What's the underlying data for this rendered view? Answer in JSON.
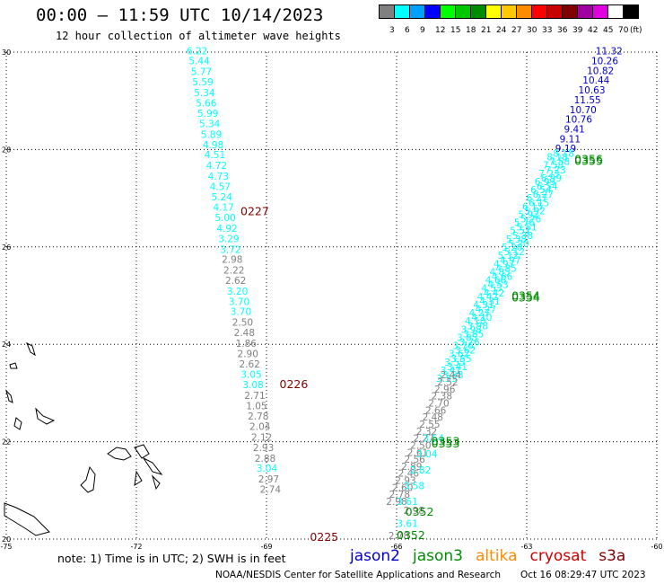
{
  "header": {
    "title": "00:00 – 11:59 UTC 10/14/2023",
    "subtitle": "12 hour collection of altimeter wave heights"
  },
  "colorbar": {
    "colors": [
      "#808080",
      "#00ffff",
      "#00a0ff",
      "#0000ff",
      "#00ff00",
      "#00c800",
      "#008c00",
      "#ffff00",
      "#ffc800",
      "#ff8c00",
      "#ff0000",
      "#c80000",
      "#800000",
      "#a000a0",
      "#e000e0",
      "#ffffff",
      "#000000"
    ],
    "labels": [
      "3",
      "6",
      "9",
      "12",
      "15",
      "18",
      "21",
      "24",
      "27",
      "30",
      "33",
      "36",
      "39",
      "42",
      "45",
      "70",
      "(ft)"
    ]
  },
  "axes": {
    "x_ticks": [
      "-75",
      "-72",
      "-69",
      "-66",
      "-63",
      "-60"
    ],
    "y_ticks": [
      "30",
      "28",
      "26",
      "24",
      "22",
      "20"
    ],
    "lon_range": [
      -75,
      -60
    ],
    "lat_range": [
      20,
      30
    ]
  },
  "tracks": {
    "jason3_west": {
      "color_key": "cyan_and_gray",
      "points": [
        {
          "lat": 29.95,
          "lon": -70.6,
          "v": "6.22",
          "c": "#00ffff"
        },
        {
          "lat": 29.75,
          "lon": -70.55,
          "v": "5.44",
          "c": "#00ffff"
        },
        {
          "lat": 29.53,
          "lon": -70.5,
          "v": "5.77",
          "c": "#00ffff"
        },
        {
          "lat": 29.32,
          "lon": -70.47,
          "v": "5.59",
          "c": "#00ffff"
        },
        {
          "lat": 29.1,
          "lon": -70.43,
          "v": "5.34",
          "c": "#00ffff"
        },
        {
          "lat": 28.88,
          "lon": -70.39,
          "v": "5.66",
          "c": "#00ffff"
        },
        {
          "lat": 28.67,
          "lon": -70.35,
          "v": "5.99",
          "c": "#00ffff"
        },
        {
          "lat": 28.46,
          "lon": -70.31,
          "v": "5.34",
          "c": "#00ffff"
        },
        {
          "lat": 28.24,
          "lon": -70.27,
          "v": "5.89",
          "c": "#00ffff"
        },
        {
          "lat": 28.03,
          "lon": -70.23,
          "v": "4.98",
          "c": "#00ffff"
        },
        {
          "lat": 27.82,
          "lon": -70.19,
          "v": "4.51",
          "c": "#00ffff"
        },
        {
          "lat": 27.6,
          "lon": -70.15,
          "v": "4.72",
          "c": "#00ffff"
        },
        {
          "lat": 27.38,
          "lon": -70.11,
          "v": "4.73",
          "c": "#00ffff"
        },
        {
          "lat": 27.17,
          "lon": -70.07,
          "v": "4.57",
          "c": "#00ffff"
        },
        {
          "lat": 26.96,
          "lon": -70.03,
          "v": "5.24",
          "c": "#00ffff"
        },
        {
          "lat": 26.74,
          "lon": -69.99,
          "v": "4.17",
          "c": "#00ffff"
        },
        {
          "lat": 26.53,
          "lon": -69.95,
          "v": "5.00",
          "c": "#00ffff"
        },
        {
          "lat": 26.31,
          "lon": -69.91,
          "v": "4.92",
          "c": "#00ffff"
        },
        {
          "lat": 26.1,
          "lon": -69.87,
          "v": "3.29",
          "c": "#00ffff"
        },
        {
          "lat": 25.88,
          "lon": -69.83,
          "v": "3.72",
          "c": "#00ffff"
        },
        {
          "lat": 25.67,
          "lon": -69.79,
          "v": "2.98",
          "c": "#808080"
        },
        {
          "lat": 25.45,
          "lon": -69.75,
          "v": "2.22",
          "c": "#808080"
        },
        {
          "lat": 25.24,
          "lon": -69.71,
          "v": "2.62",
          "c": "#808080"
        },
        {
          "lat": 25.02,
          "lon": -69.67,
          "v": "3.20",
          "c": "#00ffff"
        },
        {
          "lat": 24.81,
          "lon": -69.63,
          "v": "3.70",
          "c": "#00ffff"
        },
        {
          "lat": 24.6,
          "lon": -69.59,
          "v": "3.70",
          "c": "#00ffff"
        },
        {
          "lat": 24.38,
          "lon": -69.55,
          "v": "2.50",
          "c": "#808080"
        },
        {
          "lat": 24.17,
          "lon": -69.51,
          "v": "2.48",
          "c": "#808080"
        },
        {
          "lat": 23.95,
          "lon": -69.47,
          "v": "1.86",
          "c": "#808080"
        },
        {
          "lat": 23.74,
          "lon": -69.43,
          "v": "2.90",
          "c": "#808080"
        },
        {
          "lat": 23.52,
          "lon": -69.39,
          "v": "2.62",
          "c": "#808080"
        },
        {
          "lat": 23.31,
          "lon": -69.35,
          "v": "3.05",
          "c": "#00ffff"
        },
        {
          "lat": 23.1,
          "lon": -69.31,
          "v": "3.08",
          "c": "#00ffff"
        },
        {
          "lat": 22.88,
          "lon": -69.27,
          "v": "2.71",
          "c": "#808080"
        },
        {
          "lat": 22.67,
          "lon": -69.23,
          "v": "1.05",
          "c": "#808080"
        },
        {
          "lat": 22.45,
          "lon": -69.19,
          "v": "2.78",
          "c": "#808080"
        },
        {
          "lat": 22.24,
          "lon": -69.15,
          "v": "2.04",
          "c": "#808080"
        },
        {
          "lat": 22.02,
          "lon": -69.11,
          "v": "2.12",
          "c": "#808080"
        },
        {
          "lat": 21.81,
          "lon": -69.07,
          "v": "2.93",
          "c": "#808080"
        },
        {
          "lat": 21.59,
          "lon": -69.03,
          "v": "2.88",
          "c": "#808080"
        },
        {
          "lat": 21.38,
          "lon": -68.99,
          "v": "3.04",
          "c": "#00ffff"
        },
        {
          "lat": 21.16,
          "lon": -68.95,
          "v": "2.97",
          "c": "#808080"
        },
        {
          "lat": 20.95,
          "lon": -68.91,
          "v": "2.74",
          "c": "#808080"
        }
      ]
    },
    "east_blue": [
      {
        "lat": 29.95,
        "lon": -61.1,
        "v": "11.32"
      },
      {
        "lat": 29.75,
        "lon": -61.2,
        "v": "10.26"
      },
      {
        "lat": 29.55,
        "lon": -61.3,
        "v": "10.82"
      },
      {
        "lat": 29.35,
        "lon": -61.4,
        "v": "10.44"
      },
      {
        "lat": 29.15,
        "lon": -61.5,
        "v": "10.63"
      },
      {
        "lat": 28.95,
        "lon": -61.6,
        "v": "11.55"
      },
      {
        "lat": 28.75,
        "lon": -61.7,
        "v": "10.70"
      },
      {
        "lat": 28.55,
        "lon": -61.8,
        "v": "10.76"
      },
      {
        "lat": 28.35,
        "lon": -61.9,
        "v": "9.41"
      },
      {
        "lat": 28.15,
        "lon": -62.0,
        "v": "9.11"
      },
      {
        "lat": 27.95,
        "lon": -62.1,
        "v": "9.19"
      }
    ],
    "east_cyan_labels": [
      "8.18",
      "7.58",
      "7.23",
      "6.99",
      "6.54",
      "6.27",
      "6.15",
      "5.92",
      "5.76",
      "5.51",
      "5.38",
      "5.20",
      "5.12",
      "4.97",
      "4.85",
      "4.66",
      "4.53",
      "4.42",
      "4.31",
      "4.27",
      "4.10",
      "3.98",
      "3.85",
      "3.76",
      "3.62",
      "3.55",
      "3.41",
      "3.33"
    ],
    "east_gray_labels": [
      "2.44",
      "2.52",
      "2.96",
      "2.38",
      "2.70",
      "2.66",
      "2.48",
      "2.55",
      "2.32",
      "2.27",
      "2.50",
      "2.61",
      "2.56",
      "2.89",
      "2.46",
      "2.93",
      "2.60",
      "2.78",
      "2.98"
    ],
    "east_lower_cyan": [
      "3.54",
      "3.04",
      "2.82",
      "3.58",
      "3.61"
    ],
    "east_bottom": [
      {
        "lat": 20.52,
        "lon": -65.6,
        "v": "2.98",
        "c": "#808080"
      },
      {
        "lat": 20.25,
        "lon": -65.75,
        "v": "3.61",
        "c": "#00ffff"
      },
      {
        "lat": 20.0,
        "lon": -65.95,
        "v": "2.78",
        "c": "#808080"
      }
    ]
  },
  "time_labels": [
    {
      "lat": 26.65,
      "lon": -69.6,
      "text": "0227",
      "color": "#800000"
    },
    {
      "lat": 23.1,
      "lon": -68.7,
      "text": "0226",
      "color": "#800000"
    },
    {
      "lat": 19.96,
      "lon": -68.0,
      "text": "0225",
      "color": "#800000"
    },
    {
      "lat": 27.72,
      "lon": -61.9,
      "text": "0356",
      "color": "#008c00"
    },
    {
      "lat": 27.68,
      "lon": -61.9,
      "text": "0355",
      "color": "#008c00"
    },
    {
      "lat": 24.92,
      "lon": -63.35,
      "text": "0354",
      "color": "#008c00"
    },
    {
      "lat": 24.88,
      "lon": -63.35,
      "text": "0354",
      "color": "#008c00"
    },
    {
      "lat": 21.93,
      "lon": -65.2,
      "text": "0353",
      "color": "#008c00"
    },
    {
      "lat": 21.88,
      "lon": -65.2,
      "text": "0353",
      "color": "#008c00"
    },
    {
      "lat": 20.48,
      "lon": -65.8,
      "text": "0352",
      "color": "#008c00"
    },
    {
      "lat": 20.0,
      "lon": -66.0,
      "text": "0352",
      "color": "#008c00"
    }
  ],
  "note": "note:  1) Time is in UTC;  2) SWH is in feet",
  "legend": [
    {
      "name": "jason2",
      "color": "#0000cc"
    },
    {
      "name": "jason3",
      "color": "#008c00"
    },
    {
      "name": "altika",
      "color": "#ff8c00"
    },
    {
      "name": "cryosat",
      "color": "#cc0000"
    },
    {
      "name": "s3a",
      "color": "#800000"
    }
  ],
  "credit": "NOAA/NESDIS Center for Satellite Applications and Research",
  "timestamp": "Oct 16 08:29:47 UTC 2023"
}
